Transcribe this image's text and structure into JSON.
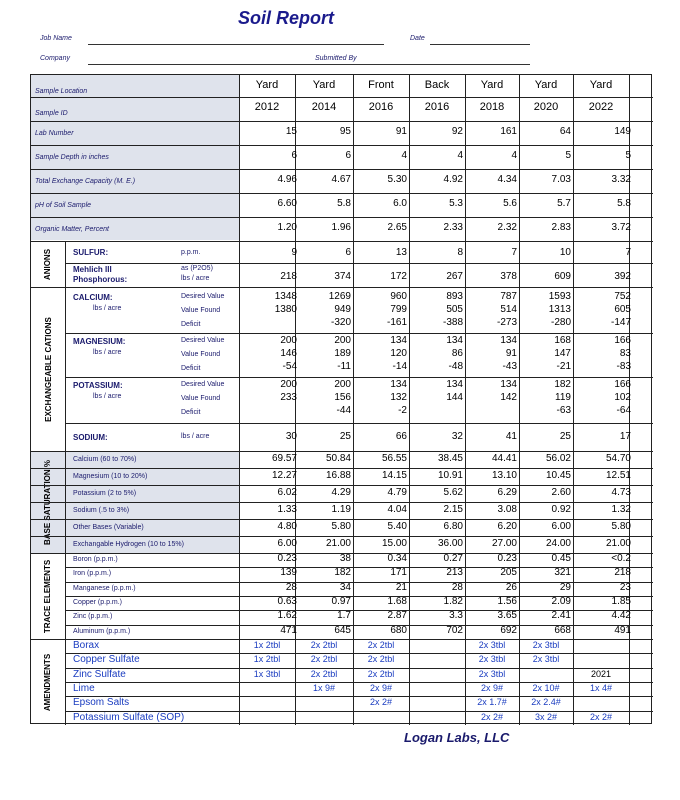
{
  "title": "Soil Report",
  "header": {
    "job_name": "Job Name",
    "date": "Date",
    "company": "Company",
    "submitted_by": "Submitted By"
  },
  "columns": [
    {
      "location": "Yard",
      "id": "2012"
    },
    {
      "location": "Yard",
      "id": "2014"
    },
    {
      "location": "Front",
      "id": "2016"
    },
    {
      "location": "Back",
      "id": "2016"
    },
    {
      "location": "Yard",
      "id": "2018"
    },
    {
      "location": "Yard",
      "id": "2020"
    },
    {
      "location": "Yard",
      "id": "2022"
    }
  ],
  "top_labels": [
    "Sample Location",
    "Sample ID"
  ],
  "general_rows": [
    {
      "label": "Lab Number",
      "values": [
        "15",
        "95",
        "91",
        "92",
        "161",
        "64",
        "149"
      ]
    },
    {
      "label": "Sample Depth in inches",
      "values": [
        "6",
        "6",
        "4",
        "4",
        "4",
        "5",
        "5"
      ]
    },
    {
      "label": "Total Exchange Capacity (M. E.)",
      "values": [
        "4.96",
        "4.67",
        "5.30",
        "4.92",
        "4.34",
        "7.03",
        "3.32"
      ]
    },
    {
      "label": "pH of Soil Sample",
      "values": [
        "6.60",
        "5.8",
        "6.0",
        "5.3",
        "5.6",
        "5.7",
        "5.8"
      ]
    },
    {
      "label": "Organic Matter, Percent",
      "values": [
        "1.20",
        "1.96",
        "2.65",
        "2.33",
        "2.32",
        "2.83",
        "3.72"
      ]
    }
  ],
  "anions": {
    "side_label": "ANIONS",
    "rows": [
      {
        "label": "SULFUR:",
        "unit": "p.p.m.",
        "values": [
          "9",
          "6",
          "13",
          "8",
          "7",
          "10",
          "7"
        ]
      },
      {
        "label": "Mehlich III",
        "label2": "Phosphorous:",
        "unit": "as (P2O5)",
        "unit2": "lbs / acre",
        "values": [
          "218",
          "374",
          "172",
          "267",
          "378",
          "609",
          "392"
        ]
      }
    ]
  },
  "cations": {
    "side_label": "EXCHANGEABLE CATIONS",
    "groups": [
      {
        "name": "CALCIUM:",
        "sub": "lbs / acre",
        "row_labels": [
          "Desired Value",
          "Value Found",
          "Deficit"
        ],
        "values": [
          [
            "1348",
            "1269",
            "960",
            "893",
            "787",
            "1593",
            "752"
          ],
          [
            "1380",
            "949",
            "799",
            "505",
            "514",
            "1313",
            "605"
          ],
          [
            "",
            "-320",
            "-161",
            "-388",
            "-273",
            "-280",
            "-147"
          ]
        ]
      },
      {
        "name": "MAGNESIUM:",
        "sub": "lbs / acre",
        "row_labels": [
          "Desired Value",
          "Value Found",
          "Deficit"
        ],
        "values": [
          [
            "200",
            "200",
            "134",
            "134",
            "134",
            "168",
            "166"
          ],
          [
            "146",
            "189",
            "120",
            "86",
            "91",
            "147",
            "83"
          ],
          [
            "-54",
            "-11",
            "-14",
            "-48",
            "-43",
            "-21",
            "-83"
          ]
        ]
      },
      {
        "name": "POTASSIUM:",
        "sub": "lbs / acre",
        "row_labels": [
          "Desired Value",
          "Value Found",
          "Deficit"
        ],
        "values": [
          [
            "200",
            "200",
            "134",
            "134",
            "134",
            "182",
            "166"
          ],
          [
            "233",
            "156",
            "132",
            "144",
            "142",
            "119",
            "102"
          ],
          [
            "",
            "-44",
            "-2",
            "",
            "",
            "-63",
            "-64"
          ]
        ]
      }
    ],
    "sodium": {
      "label": "SODIUM:",
      "unit": "lbs / acre",
      "values": [
        "30",
        "25",
        "66",
        "32",
        "41",
        "25",
        "17"
      ]
    }
  },
  "base_saturation": {
    "side_label": "BASE SATURATION %",
    "rows": [
      {
        "label": "Calcium (60 to 70%)",
        "values": [
          "69.57",
          "50.84",
          "56.55",
          "38.45",
          "44.41",
          "56.02",
          "54.70"
        ]
      },
      {
        "label": "Magnesium (10 to 20%)",
        "values": [
          "12.27",
          "16.88",
          "14.15",
          "10.91",
          "13.10",
          "10.45",
          "12.51"
        ]
      },
      {
        "label": "Potassium (2 to 5%)",
        "values": [
          "6.02",
          "4.29",
          "4.79",
          "5.62",
          "6.29",
          "2.60",
          "4.73"
        ]
      },
      {
        "label": "Sodium (.5 to 3%)",
        "values": [
          "1.33",
          "1.19",
          "4.04",
          "2.15",
          "3.08",
          "0.92",
          "1.32"
        ]
      },
      {
        "label": "Other Bases (Variable)",
        "values": [
          "4.80",
          "5.80",
          "5.40",
          "6.80",
          "6.20",
          "6.00",
          "5.80"
        ]
      },
      {
        "label": "Exchangable Hydrogen (10 to 15%)",
        "values": [
          "6.00",
          "21.00",
          "15.00",
          "36.00",
          "27.00",
          "24.00",
          "21.00"
        ]
      }
    ]
  },
  "trace": {
    "side_label": "TRACE ELEMENTS",
    "rows": [
      {
        "label": "Boron (p.p.m.)",
        "values": [
          "0.23",
          "38",
          "0.34",
          "0.27",
          "0.23",
          "0.45",
          "<0.2"
        ]
      },
      {
        "label": "Iron (p.p.m.)",
        "values": [
          "139",
          "182",
          "171",
          "213",
          "205",
          "321",
          "218"
        ]
      },
      {
        "label": "Manganese (p.p.m.)",
        "values": [
          "28",
          "34",
          "21",
          "28",
          "26",
          "29",
          "23"
        ]
      },
      {
        "label": "Copper (p.p.m.)",
        "values": [
          "0.63",
          "0.97",
          "1.68",
          "1.82",
          "1.56",
          "2.09",
          "1.85"
        ]
      },
      {
        "label": "Zinc (p.p.m.)",
        "values": [
          "1.62",
          "1.7",
          "2.87",
          "3.3",
          "3.65",
          "2.41",
          "4.42"
        ]
      },
      {
        "label": "Aluminum (p.p.m.)",
        "values": [
          "471",
          "645",
          "680",
          "702",
          "692",
          "668",
          "491"
        ]
      }
    ]
  },
  "amendments": {
    "side_label": "AMENDMENTS",
    "rows": [
      {
        "label": "Borax",
        "cells": [
          "1x 2tbl",
          "2x 2tbl",
          "2x 2tbl",
          "",
          "2x 3tbl",
          "2x 3tbl",
          ""
        ]
      },
      {
        "label": "Copper Sulfate",
        "cells": [
          "1x 2tbl",
          "2x 2tbl",
          "2x 2tbl",
          "",
          "2x 3tbl",
          "2x 3tbl",
          ""
        ]
      },
      {
        "label": "Zinc Sulfate",
        "cells": [
          "1x 3tbl",
          "2x 2tbl",
          "2x 2tbl",
          "",
          "2x 3tbl",
          "",
          "2021"
        ]
      },
      {
        "label": "Lime",
        "cells": [
          "",
          "1x 9#",
          "2x 9#",
          "",
          "2x 9#",
          "2x 10#",
          "1x 4#"
        ]
      },
      {
        "label": "Epsom Salts",
        "cells": [
          "",
          "",
          "2x 2#",
          "",
          "2x 1.7#",
          "2x 2.4#",
          ""
        ]
      },
      {
        "label": "Potassium Sulfate (SOP)",
        "cells": [
          "",
          "",
          "",
          "",
          "2x 2#",
          "3x 2#",
          "2x 2#"
        ]
      }
    ]
  },
  "footer": "Logan Labs, LLC"
}
